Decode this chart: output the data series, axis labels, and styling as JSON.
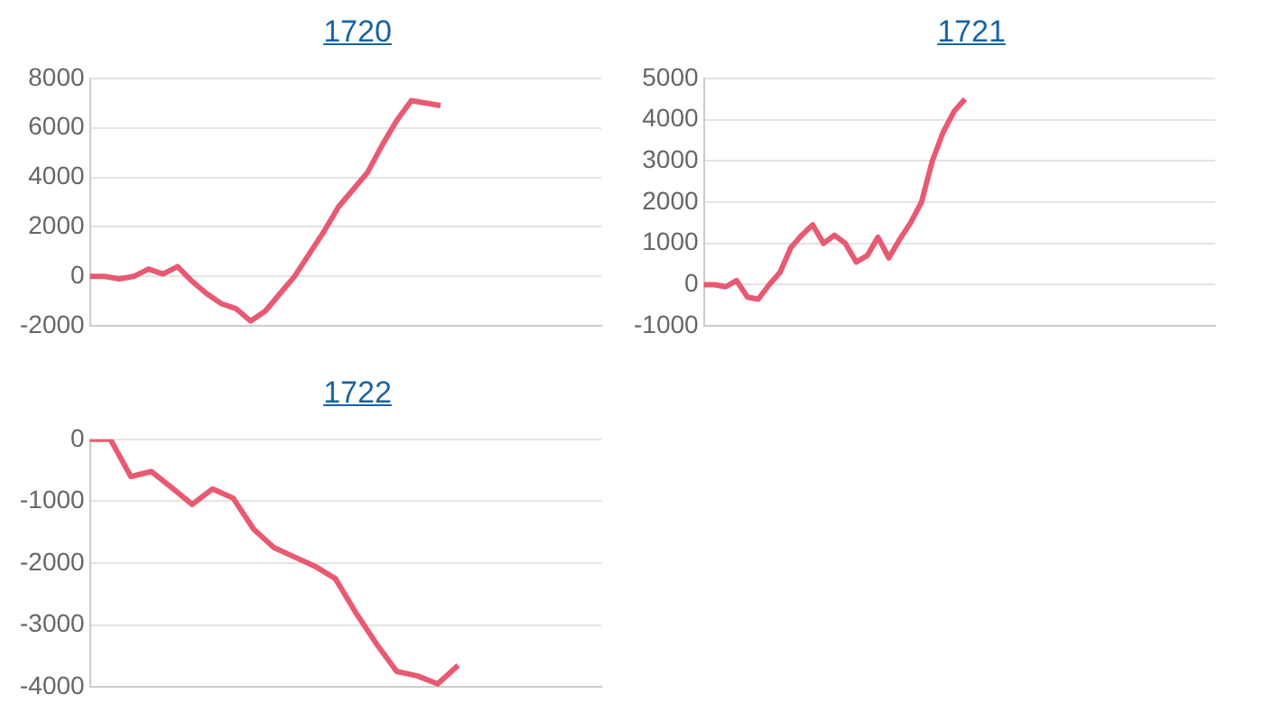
{
  "chart_data": [
    {
      "type": "line",
      "title": "1720",
      "categories": [
        null,
        null,
        null,
        null,
        null,
        null,
        null,
        null,
        null,
        null,
        null,
        null,
        null,
        null,
        null,
        null,
        null,
        null,
        null,
        null,
        null,
        null,
        null,
        null,
        null,
        null,
        null,
        null,
        null,
        null,
        null,
        null,
        null,
        null,
        null,
        null
      ],
      "series": [
        {
          "color": "#e85a72",
          "values": [
            0,
            0,
            -100,
            0,
            300,
            100,
            400,
            -200,
            -700,
            -1100,
            -1300,
            -1800,
            -1400,
            -700,
            0,
            900,
            1800,
            2800,
            3500,
            4200,
            5300,
            6300,
            7100,
            7000,
            6900,
            null,
            null,
            null,
            null,
            null,
            null,
            null,
            null,
            null,
            null,
            null
          ]
        }
      ],
      "ylim": [
        -2000,
        8000
      ],
      "yticks": [
        -2000,
        0,
        2000,
        4000,
        6000,
        8000
      ],
      "grid": "y",
      "tick_labels": "y",
      "marker": "none",
      "line_style": "solid"
    },
    {
      "type": "line",
      "title": "1721",
      "categories": [
        null,
        null,
        null,
        null,
        null,
        null,
        null,
        null,
        null,
        null,
        null,
        null,
        null,
        null,
        null,
        null,
        null,
        null,
        null,
        null,
        null,
        null,
        null,
        null,
        null,
        null,
        null,
        null,
        null,
        null,
        null,
        null,
        null,
        null,
        null,
        null,
        null,
        null,
        null,
        null,
        null,
        null,
        null,
        null,
        null,
        null,
        null,
        null
      ],
      "series": [
        {
          "color": "#e85a72",
          "values": [
            0,
            0,
            -50,
            100,
            -300,
            -350,
            0,
            300,
            900,
            1200,
            1450,
            1000,
            1200,
            1000,
            550,
            700,
            1150,
            650,
            1100,
            1500,
            2000,
            3000,
            3700,
            4200,
            4500,
            null,
            null,
            null,
            null,
            null,
            null,
            null,
            null,
            null,
            null,
            null,
            null,
            null,
            null,
            null,
            null,
            null,
            null,
            null,
            null,
            null,
            null,
            null
          ]
        }
      ],
      "ylim": [
        -1000,
        5000
      ],
      "yticks": [
        -1000,
        0,
        1000,
        2000,
        3000,
        4000,
        5000
      ],
      "grid": "y",
      "tick_labels": "y",
      "marker": "none",
      "line_style": "solid"
    },
    {
      "type": "line",
      "title": "1722",
      "categories": [
        null,
        null,
        null,
        null,
        null,
        null,
        null,
        null,
        null,
        null,
        null,
        null,
        null,
        null,
        null,
        null,
        null,
        null,
        null,
        null,
        null,
        null,
        null,
        null,
        null,
        null
      ],
      "series": [
        {
          "color": "#e85a72",
          "values": [
            0,
            0,
            -600,
            -520,
            -780,
            -1050,
            -800,
            -950,
            -1450,
            -1750,
            -1900,
            -2050,
            -2250,
            -2800,
            -3300,
            -3750,
            -3820,
            -3950,
            -3650,
            null,
            null,
            null,
            null,
            null,
            null,
            null
          ]
        }
      ],
      "ylim": [
        -4000,
        0
      ],
      "yticks": [
        -4000,
        -3000,
        -2000,
        -1000,
        0
      ],
      "grid": "y",
      "tick_labels": "y",
      "marker": "none",
      "line_style": "solid"
    }
  ]
}
